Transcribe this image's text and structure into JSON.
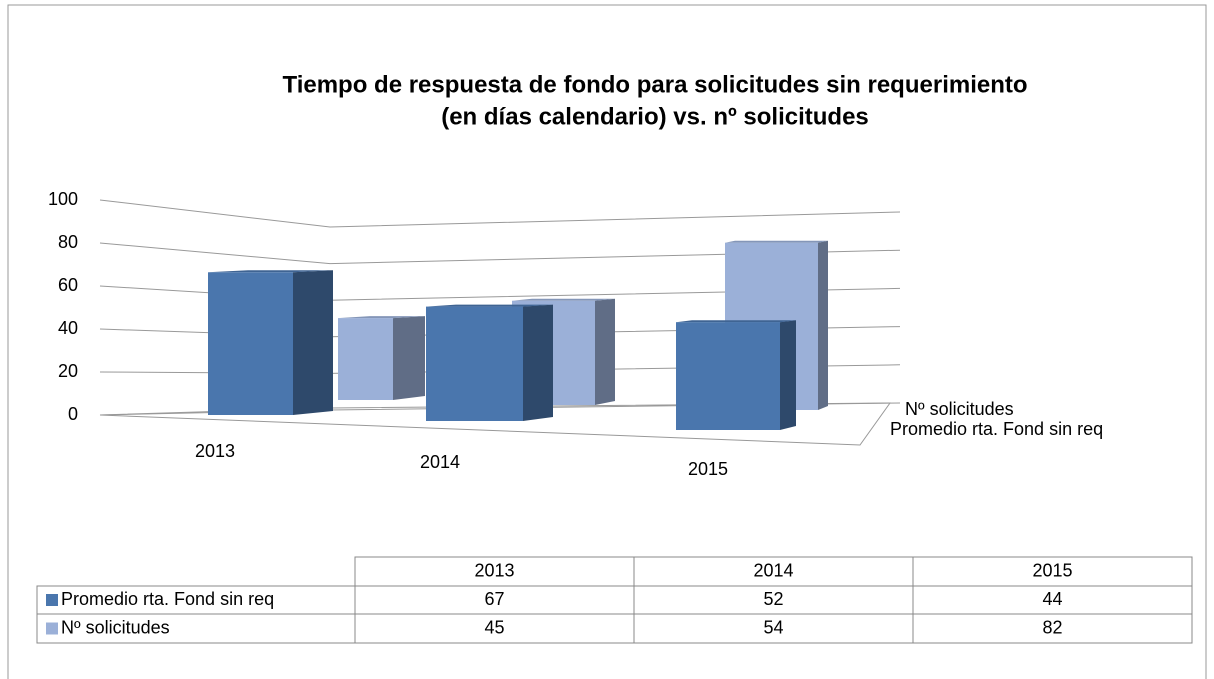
{
  "chart_data": {
    "type": "bar3d",
    "title": [
      "Tiempo de respuesta de fondo para solicitudes sin requerimiento",
      "(en días calendario) vs. nº solicitudes"
    ],
    "categories": [
      "2013",
      "2014",
      "2015"
    ],
    "series": [
      {
        "name": "Promedio rta. Fond sin req",
        "color": "#4a76ad",
        "values": [
          67,
          52,
          44
        ]
      },
      {
        "name": "Nº solicitudes",
        "color": "#9bb0d8",
        "values": [
          45,
          54,
          82
        ]
      }
    ],
    "ylim": [
      0,
      100
    ],
    "yticks": [
      0,
      20,
      40,
      60,
      80,
      100
    ],
    "grid": true,
    "data_table": true
  }
}
